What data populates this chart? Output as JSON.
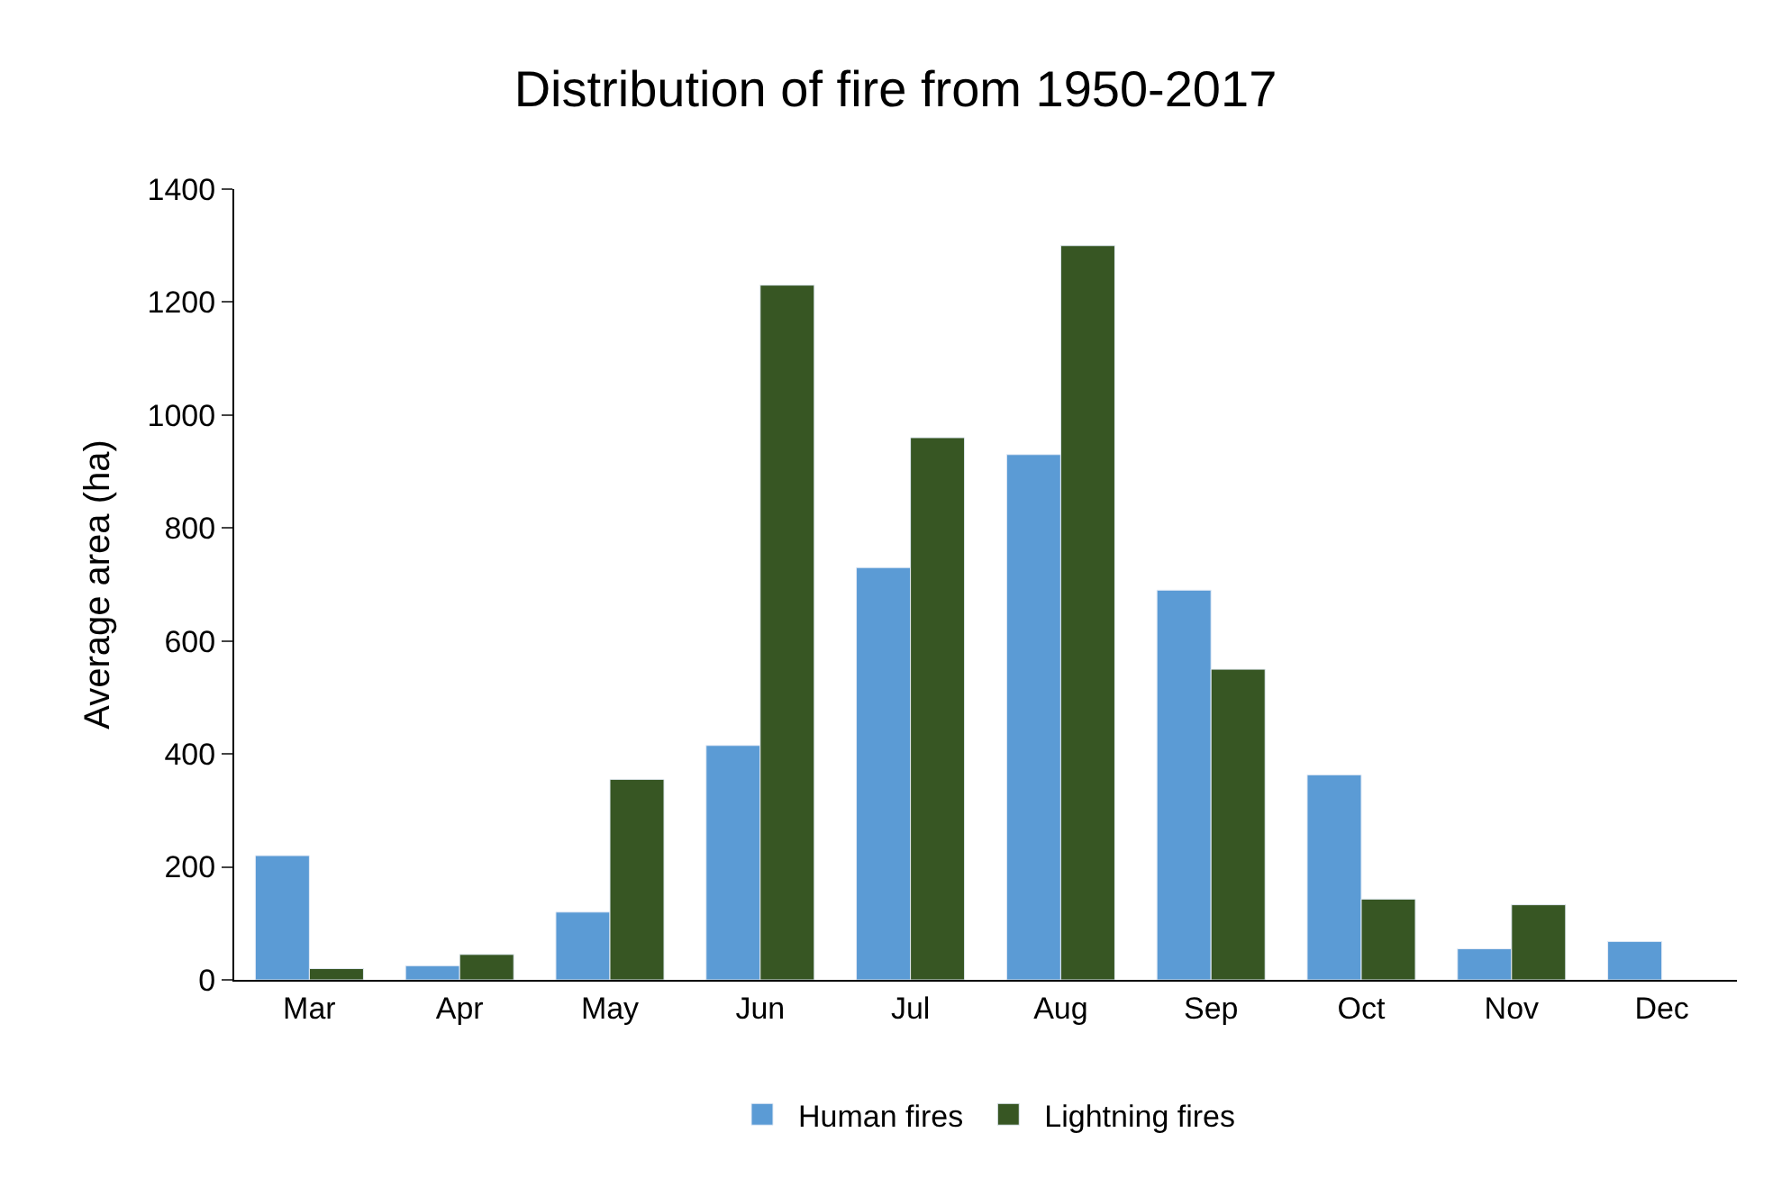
{
  "chart_data": {
    "type": "bar",
    "title": "Distribution of fire from 1950-2017",
    "ylabel": "Average area (ha)",
    "categories": [
      "Mar",
      "Apr",
      "May",
      "Jun",
      "Jul",
      "Aug",
      "Sep",
      "Oct",
      "Nov",
      "Dec"
    ],
    "series": [
      {
        "name": "Human fires",
        "color": "#5b9bd5",
        "values": [
          220,
          25,
          120,
          415,
          730,
          930,
          690,
          363,
          55,
          68
        ]
      },
      {
        "name": "Lightning fires",
        "color": "#375623",
        "values": [
          20,
          45,
          355,
          1230,
          960,
          1300,
          550,
          143,
          133,
          null
        ]
      }
    ],
    "ylim": [
      0,
      1400
    ],
    "yticks": [
      0,
      200,
      400,
      600,
      800,
      1000,
      1200,
      1400
    ],
    "legend": "bottom"
  }
}
